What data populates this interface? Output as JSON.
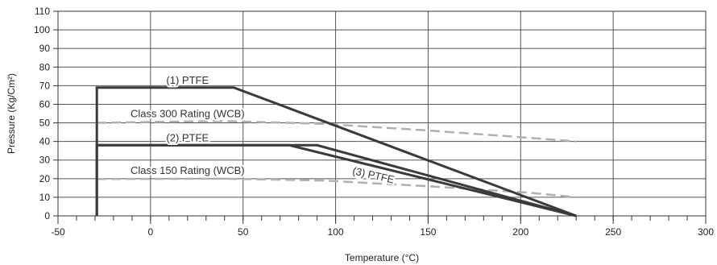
{
  "chart_data": {
    "type": "line",
    "xlabel": "Temperature (°C)",
    "ylabel": "Pressure (Kg/Cm²)",
    "xlim": [
      -50,
      300
    ],
    "ylim": [
      0,
      110
    ],
    "xticks": [
      -50,
      0,
      50,
      100,
      150,
      200,
      250,
      300
    ],
    "yticks": [
      0,
      10,
      20,
      30,
      40,
      50,
      60,
      70,
      80,
      90,
      100,
      110
    ],
    "x_minor_step": 10,
    "grid": true,
    "colors": {
      "ptfe": "#3a3a3a",
      "rating": "#b0b0b0",
      "grid": "#555555"
    },
    "series": [
      {
        "name": "(1) PTFE",
        "style": "solid",
        "x": [
          -29,
          -29,
          45,
          230
        ],
        "y": [
          0,
          69,
          69,
          0
        ]
      },
      {
        "name": "(2) PTFE",
        "style": "solid",
        "x": [
          -29,
          -29,
          75,
          230
        ],
        "y": [
          0,
          38,
          38,
          0
        ]
      },
      {
        "name": "(3) PTFE",
        "style": "solid",
        "x": [
          -29,
          90,
          230
        ],
        "y": [
          38,
          38,
          0
        ]
      },
      {
        "name": "Class 300 Rating (WCB)",
        "style": "dashed",
        "x": [
          -29,
          38,
          93,
          149,
          204,
          230
        ],
        "y": [
          50,
          51,
          49.5,
          46,
          42,
          40
        ]
      },
      {
        "name": "Class 150 Rating (WCB)",
        "style": "dashed",
        "x": [
          -29,
          38,
          93,
          149,
          204,
          230
        ],
        "y": [
          19.8,
          20,
          19,
          16,
          12.5,
          10
        ]
      }
    ],
    "annotations": [
      {
        "text": "(1) PTFE",
        "x": 20,
        "y": 71,
        "rotate": 0
      },
      {
        "text": "Class 300 Rating (WCB)",
        "x": 20,
        "y": 53,
        "rotate": 0
      },
      {
        "text": "(2) PTFE",
        "x": 20,
        "y": 40,
        "rotate": 0
      },
      {
        "text": "Class 150 Rating (WCB)",
        "x": 20,
        "y": 22.5,
        "rotate": 0
      },
      {
        "text": "(3) PTFE",
        "x": 120,
        "y": 20,
        "rotate": 13
      }
    ]
  }
}
